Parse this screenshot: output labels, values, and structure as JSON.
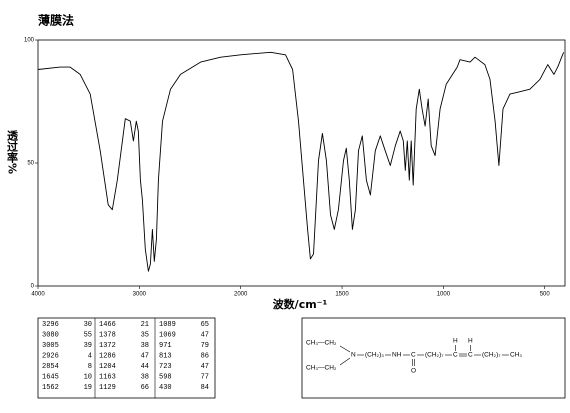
{
  "chart_data": {
    "type": "line",
    "title": "薄膜法",
    "xlabel": "波数/cm⁻¹",
    "ylabel": "透过率%",
    "xlim": [
      4000,
      400
    ],
    "xticks": [
      4000,
      3000,
      2000,
      1500,
      1000,
      500
    ],
    "x_expand_below": 2000,
    "ylim": [
      0,
      100
    ],
    "yticks": [
      0,
      50,
      100
    ],
    "color": "#000000",
    "x": [
      4000,
      3782,
      3683,
      3584,
      3485,
      3386,
      3307,
      3267,
      3218,
      3139,
      3089,
      3059,
      3030,
      3010,
      2990,
      2970,
      2941,
      2911,
      2891,
      2871,
      2852,
      2832,
      2812,
      2772,
      2693,
      2594,
      2396,
      2198,
      2000,
      1852,
      1779,
      1744,
      1715,
      1670,
      1656,
      1641,
      1616,
      1597,
      1577,
      1557,
      1538,
      1518,
      1493,
      1479,
      1464,
      1449,
      1434,
      1419,
      1400,
      1380,
      1360,
      1336,
      1311,
      1287,
      1262,
      1237,
      1213,
      1198,
      1188,
      1178,
      1168,
      1159,
      1149,
      1134,
      1119,
      1105,
      1090,
      1075,
      1060,
      1041,
      1016,
      986,
      932,
      918,
      868,
      844,
      795,
      770,
      745,
      726,
      706,
      672,
      622,
      573,
      524,
      485,
      455,
      436,
      407
    ],
    "values": [
      88,
      89,
      89,
      86,
      78,
      55,
      33,
      31,
      43,
      68,
      67,
      59,
      67,
      63,
      43,
      35,
      15,
      6,
      9,
      23,
      10,
      19,
      43,
      67,
      80,
      86,
      91,
      93,
      94,
      95,
      94,
      88,
      67,
      23,
      11,
      13,
      51,
      62,
      51,
      29,
      23,
      31,
      51,
      56,
      43,
      23,
      31,
      55,
      61,
      43,
      37,
      55,
      61,
      55,
      49,
      57,
      63,
      59,
      47,
      59,
      43,
      59,
      41,
      72,
      80,
      72,
      65,
      76,
      57,
      53,
      72,
      82,
      89,
      92,
      91,
      93,
      90,
      84,
      67,
      49,
      72,
      78,
      79,
      80,
      84,
      90,
      86,
      89,
      95
    ]
  },
  "peak_table": [
    [
      [
        "3296",
        "30"
      ],
      [
        "3080",
        "55"
      ],
      [
        "3005",
        "39"
      ],
      [
        "2926",
        "4"
      ],
      [
        "2854",
        "8"
      ],
      [
        "1645",
        "10"
      ],
      [
        "1562",
        "19"
      ]
    ],
    [
      [
        "1466",
        "21"
      ],
      [
        "1378",
        "35"
      ],
      [
        "1372",
        "38"
      ],
      [
        "1286",
        "47"
      ],
      [
        "1204",
        "44"
      ],
      [
        "1163",
        "38"
      ],
      [
        "1129",
        "66"
      ]
    ],
    [
      [
        "1089",
        "65"
      ],
      [
        "1069",
        "47"
      ],
      [
        "971",
        "79"
      ],
      [
        "813",
        "86"
      ],
      [
        "723",
        "47"
      ],
      [
        "598",
        "77"
      ],
      [
        "430",
        "84"
      ]
    ]
  ],
  "structure": {
    "ethyl_top": "CH₃—CH₂",
    "ethyl_bottom": "CH₃—CH₂",
    "amine": "N",
    "chain1": "(CH₂)₃",
    "amide_nh": "NH",
    "carbonyl_c": "C",
    "carbonyl_o": "O",
    "chain2": "(CH₂)₇",
    "alkene_c1": "C",
    "alkene_h1": "H",
    "alkene_c2": "C",
    "alkene_h2": "H",
    "chain3": "(CH₂)₇",
    "terminal": "CH₃"
  }
}
